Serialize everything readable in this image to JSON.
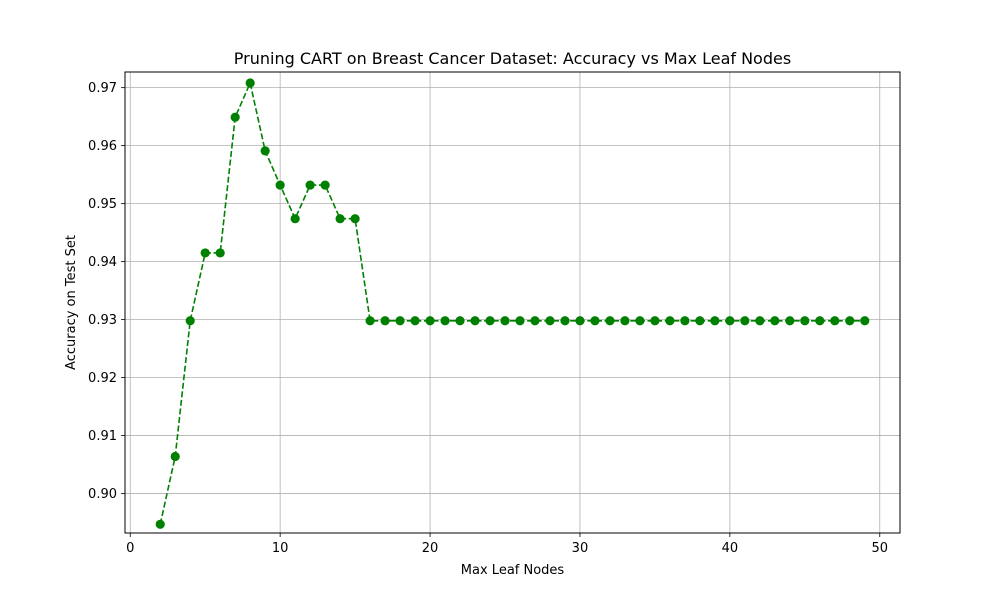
{
  "chart_data": {
    "type": "line",
    "title": "Pruning CART on Breast Cancer Dataset: Accuracy vs Max Leaf Nodes",
    "xlabel": "Max Leaf Nodes",
    "ylabel": "Accuracy on Test Set",
    "xlim": [
      -0.35,
      51.35
    ],
    "ylim": [
      0.8932,
      0.9727
    ],
    "x_ticks": [
      0,
      10,
      20,
      30,
      40,
      50
    ],
    "y_ticks": [
      0.9,
      0.91,
      0.92,
      0.93,
      0.94,
      0.95,
      0.96,
      0.97
    ],
    "x_tick_labels": [
      "0",
      "10",
      "20",
      "30",
      "40",
      "50"
    ],
    "y_tick_labels": [
      "0.90",
      "0.91",
      "0.92",
      "0.93",
      "0.94",
      "0.95",
      "0.96",
      "0.97"
    ],
    "grid": true,
    "line_style": "dashed",
    "marker": "circle",
    "color": "#008000",
    "x": [
      2,
      3,
      4,
      5,
      6,
      7,
      8,
      9,
      10,
      11,
      12,
      13,
      14,
      15,
      16,
      17,
      18,
      19,
      20,
      21,
      22,
      23,
      24,
      25,
      26,
      27,
      28,
      29,
      30,
      31,
      32,
      33,
      34,
      35,
      36,
      37,
      38,
      39,
      40,
      41,
      42,
      43,
      44,
      45,
      46,
      47,
      48,
      49
    ],
    "y": [
      0.8947,
      0.9064,
      0.9298,
      0.9415,
      0.9415,
      0.9649,
      0.9708,
      0.9591,
      0.9532,
      0.9474,
      0.9532,
      0.9532,
      0.9474,
      0.9474,
      0.9298,
      0.9298,
      0.9298,
      0.9298,
      0.9298,
      0.9298,
      0.9298,
      0.9298,
      0.9298,
      0.9298,
      0.9298,
      0.9298,
      0.9298,
      0.9298,
      0.9298,
      0.9298,
      0.9298,
      0.9298,
      0.9298,
      0.9298,
      0.9298,
      0.9298,
      0.9298,
      0.9298,
      0.9298,
      0.9298,
      0.9298,
      0.9298,
      0.9298,
      0.9298,
      0.9298,
      0.9298,
      0.9298,
      0.9298
    ]
  }
}
